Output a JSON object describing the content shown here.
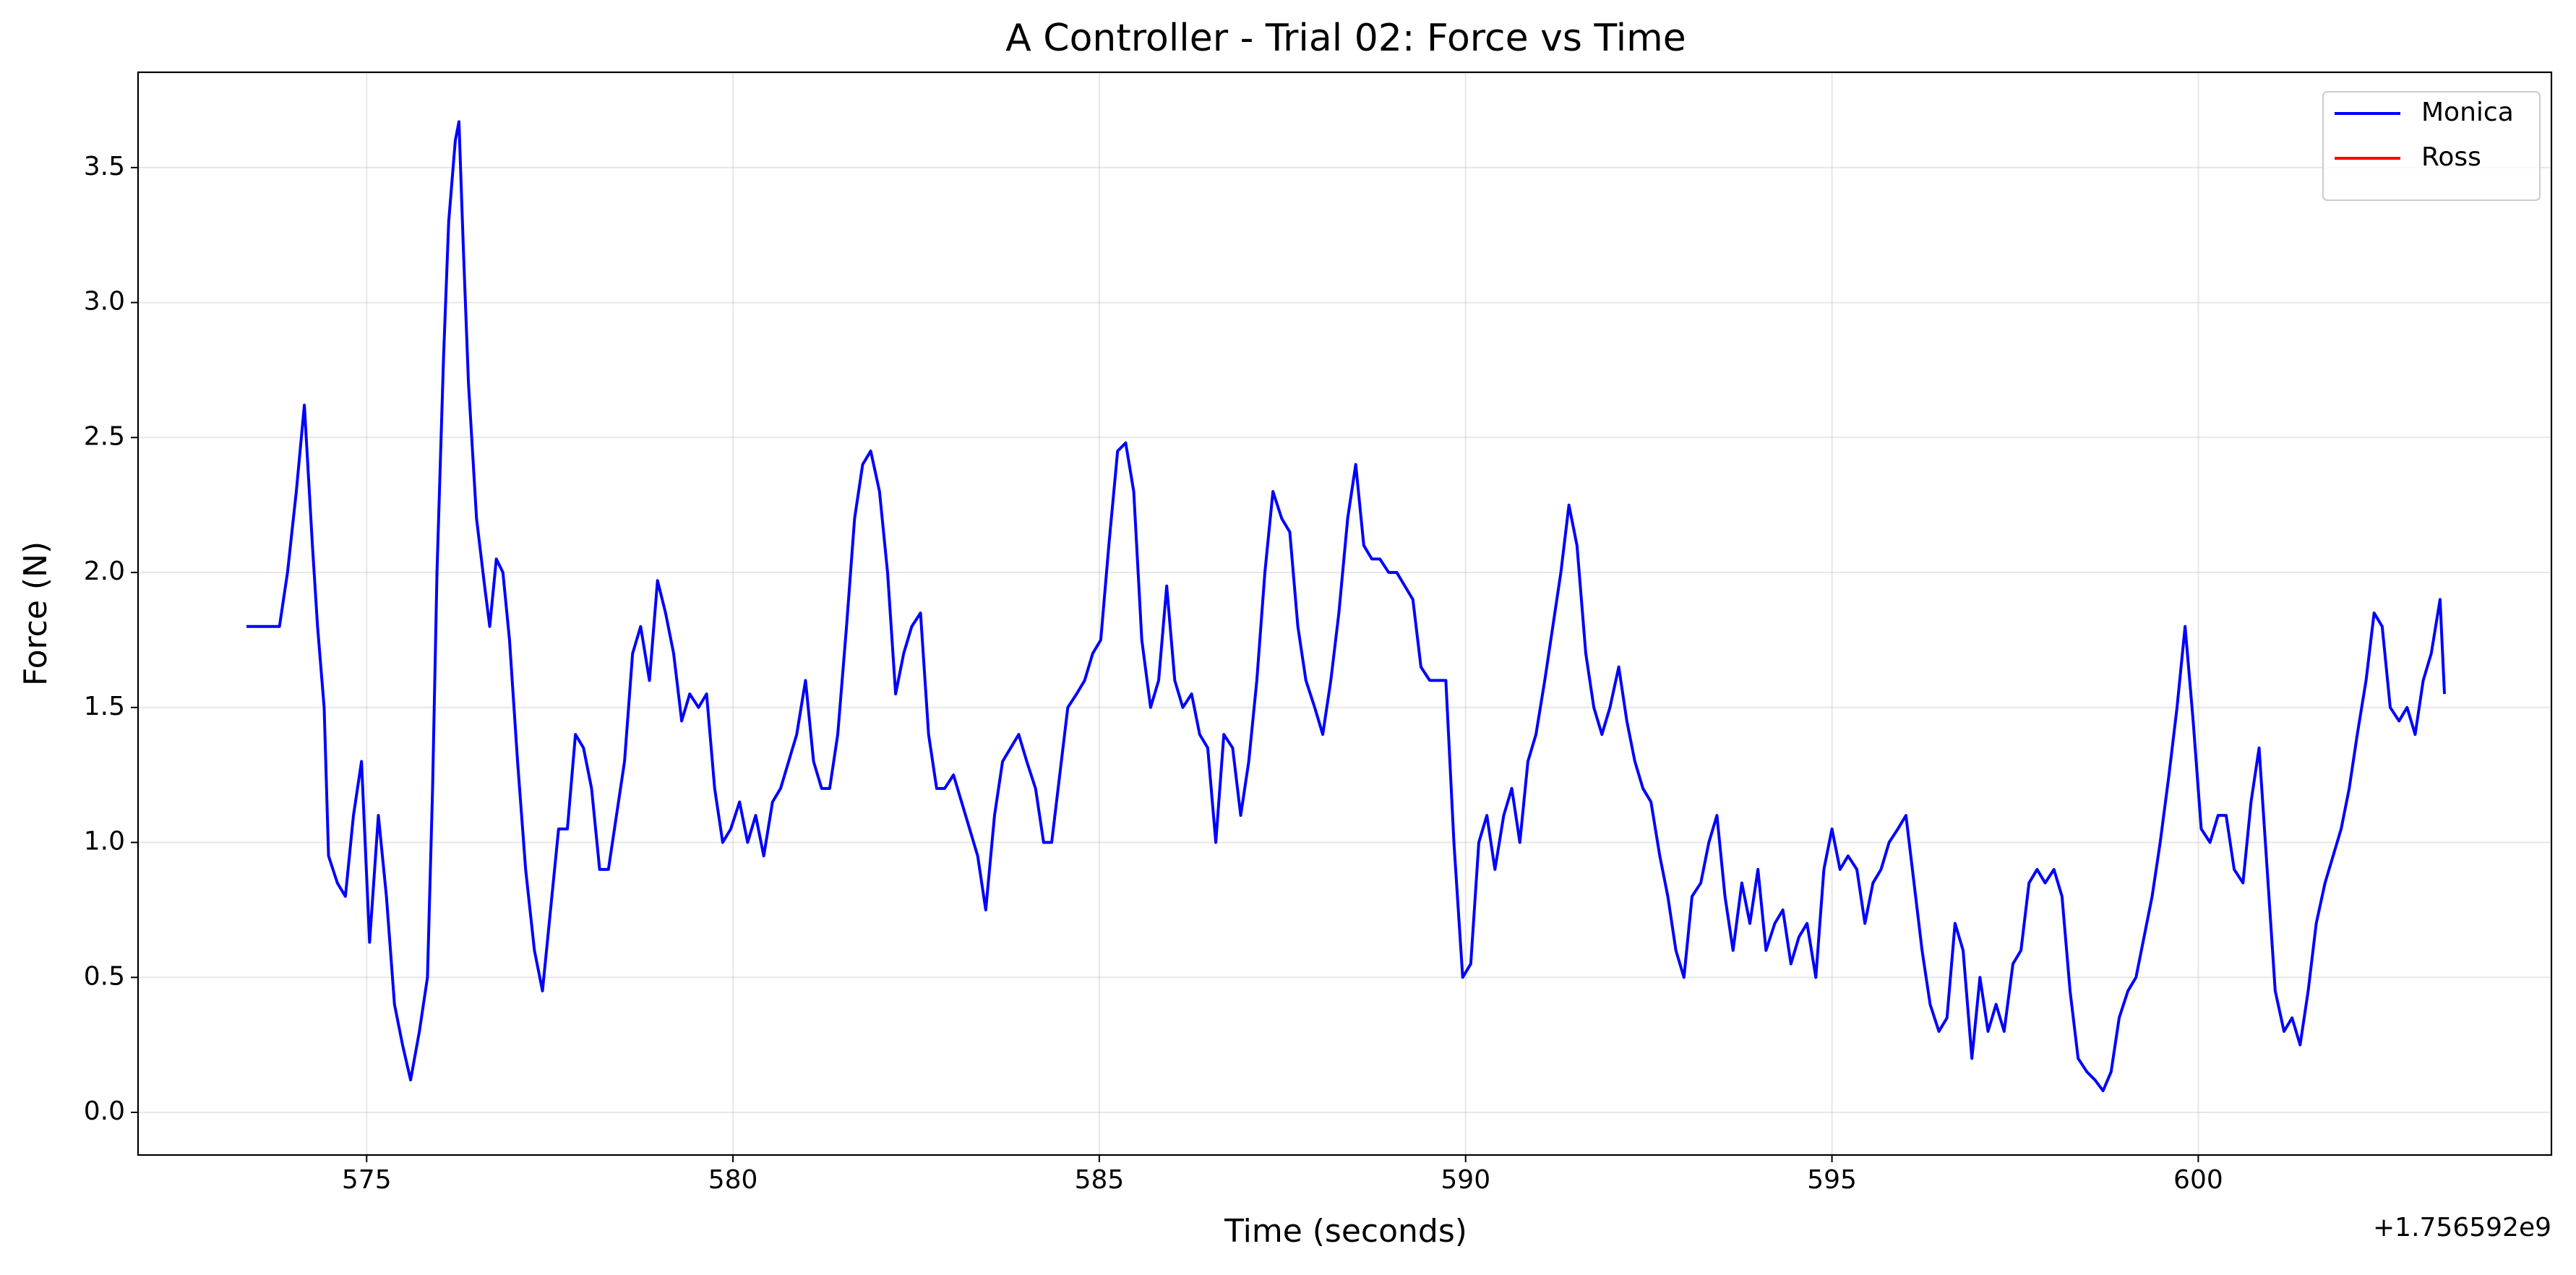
{
  "chart_data": {
    "type": "line",
    "title": "A Controller - Trial 02: Force vs Time",
    "xlabel": "Time (seconds)",
    "ylabel": "Force (N)",
    "x_offset_label": "+1.756592e9",
    "xlim": [
      571.88,
      604.82
    ],
    "ylim": [
      -0.158,
      3.853
    ],
    "xticks": [
      575,
      580,
      585,
      590,
      595,
      600
    ],
    "yticks": [
      {
        "value": 0,
        "label": "0.0"
      },
      0.5,
      {
        "value": 1,
        "label": "1.0"
      },
      1.5,
      {
        "value": 2,
        "label": "2.0"
      },
      2.5,
      {
        "value": 3,
        "label": "3.0"
      },
      3.5
    ],
    "grid": true,
    "legend": "upper right",
    "series": [
      {
        "name": "Monica",
        "color": "#0000ff",
        "x": [
          573.36,
          573.81,
          573.92,
          574.04,
          574.15,
          574.26,
          574.33,
          574.42,
          574.48,
          574.6,
          574.71,
          574.82,
          574.93,
          575.04,
          575.16,
          575.27,
          575.38,
          575.49,
          575.6,
          575.72,
          575.83,
          575.9,
          575.96,
          576.05,
          576.12,
          576.21,
          576.26,
          576.32,
          576.39,
          576.5,
          576.61,
          576.68,
          576.77,
          576.86,
          576.95,
          577.06,
          577.17,
          577.29,
          577.4,
          577.51,
          577.62,
          577.74,
          577.85,
          577.96,
          578.07,
          578.18,
          578.3,
          578.41,
          578.52,
          578.63,
          578.74,
          578.86,
          578.97,
          579.08,
          579.19,
          579.3,
          579.41,
          579.53,
          579.64,
          579.75,
          579.86,
          579.97,
          580.09,
          580.2,
          580.31,
          580.42,
          580.54,
          580.65,
          580.76,
          580.87,
          580.99,
          581.1,
          581.21,
          581.32,
          581.43,
          581.55,
          581.66,
          581.77,
          581.88,
          582.0,
          582.11,
          582.22,
          582.33,
          582.44,
          582.56,
          582.67,
          582.78,
          582.89,
          583.01,
          583.12,
          583.23,
          583.34,
          583.45,
          583.57,
          583.68,
          583.79,
          583.9,
          584.01,
          584.13,
          584.24,
          584.35,
          584.46,
          584.57,
          584.69,
          584.8,
          584.91,
          585.02,
          585.13,
          585.25,
          585.36,
          585.47,
          585.58,
          585.7,
          585.81,
          585.92,
          586.03,
          586.14,
          586.26,
          586.37,
          586.48,
          586.59,
          586.7,
          586.82,
          586.93,
          587.04,
          587.15,
          587.26,
          587.37,
          587.49,
          587.6,
          587.71,
          587.82,
          587.94,
          588.05,
          588.16,
          588.27,
          588.39,
          588.5,
          588.61,
          588.72,
          588.83,
          588.95,
          589.06,
          589.17,
          589.28,
          589.39,
          589.51,
          589.62,
          589.73,
          589.84,
          589.96,
          590.07,
          590.18,
          590.29,
          590.4,
          590.52,
          590.63,
          590.74,
          590.85,
          590.96,
          591.08,
          591.19,
          591.3,
          591.41,
          591.52,
          591.64,
          591.75,
          591.86,
          591.97,
          592.09,
          592.2,
          592.31,
          592.42,
          592.53,
          592.65,
          592.76,
          592.87,
          592.98,
          593.09,
          593.21,
          593.32,
          593.43,
          593.54,
          593.65,
          593.77,
          593.88,
          593.99,
          594.1,
          594.22,
          594.33,
          594.44,
          594.55,
          594.66,
          594.78,
          594.89,
          595.0,
          595.11,
          595.22,
          595.34,
          595.45,
          595.56,
          595.67,
          595.78,
          595.9,
          596.01,
          596.12,
          596.23,
          596.34,
          596.46,
          596.57,
          596.68,
          596.79,
          596.91,
          597.02,
          597.13,
          597.24,
          597.35,
          597.47,
          597.58,
          597.69,
          597.8,
          597.91,
          598.03,
          598.14,
          598.25,
          598.36,
          598.48,
          598.59,
          598.7,
          598.81,
          598.92,
          599.04,
          599.15,
          599.26,
          599.37,
          599.48,
          599.6,
          599.71,
          599.82,
          599.93,
          600.04,
          600.16,
          600.27,
          600.38,
          600.49,
          600.61,
          600.72,
          600.83,
          600.94,
          601.05,
          601.17,
          601.28,
          601.39,
          601.5,
          601.61,
          601.73,
          601.84,
          601.95,
          602.06,
          602.17,
          602.29,
          602.4,
          602.51,
          602.62,
          602.74,
          602.85,
          602.96,
          603.07,
          603.18,
          603.3,
          603.36
        ],
        "values": [
          1.8,
          1.8,
          2.0,
          2.3,
          2.62,
          2.1,
          1.8,
          1.5,
          0.95,
          0.85,
          0.8,
          1.1,
          1.3,
          0.63,
          1.1,
          0.8,
          0.4,
          0.25,
          0.12,
          0.3,
          0.5,
          1.2,
          2.0,
          2.8,
          3.3,
          3.6,
          3.67,
          3.2,
          2.7,
          2.2,
          1.95,
          1.8,
          2.05,
          2.0,
          1.75,
          1.3,
          0.9,
          0.6,
          0.45,
          0.75,
          1.05,
          1.05,
          1.4,
          1.35,
          1.2,
          0.9,
          0.9,
          1.1,
          1.3,
          1.7,
          1.8,
          1.6,
          1.97,
          1.85,
          1.7,
          1.45,
          1.55,
          1.5,
          1.55,
          1.2,
          1.0,
          1.05,
          1.15,
          1.0,
          1.1,
          0.95,
          1.15,
          1.2,
          1.3,
          1.4,
          1.6,
          1.3,
          1.2,
          1.2,
          1.4,
          1.8,
          2.2,
          2.4,
          2.45,
          2.3,
          2.0,
          1.55,
          1.7,
          1.8,
          1.85,
          1.4,
          1.2,
          1.2,
          1.25,
          1.15,
          1.05,
          0.95,
          0.75,
          1.1,
          1.3,
          1.35,
          1.4,
          1.3,
          1.2,
          1.0,
          1.0,
          1.25,
          1.5,
          1.55,
          1.6,
          1.7,
          1.75,
          2.1,
          2.45,
          2.48,
          2.3,
          1.75,
          1.5,
          1.6,
          1.95,
          1.6,
          1.5,
          1.55,
          1.4,
          1.35,
          1.0,
          1.4,
          1.35,
          1.1,
          1.3,
          1.6,
          2.0,
          2.3,
          2.2,
          2.15,
          1.8,
          1.6,
          1.5,
          1.4,
          1.6,
          1.85,
          2.2,
          2.4,
          2.1,
          2.05,
          2.05,
          2.0,
          2.0,
          1.95,
          1.9,
          1.65,
          1.6,
          1.6,
          1.6,
          1.0,
          0.5,
          0.55,
          1.0,
          1.1,
          0.9,
          1.1,
          1.2,
          1.0,
          1.3,
          1.4,
          1.6,
          1.8,
          2.0,
          2.25,
          2.1,
          1.7,
          1.5,
          1.4,
          1.5,
          1.65,
          1.45,
          1.3,
          1.2,
          1.15,
          0.95,
          0.8,
          0.6,
          0.5,
          0.8,
          0.85,
          1.0,
          1.1,
          0.8,
          0.6,
          0.85,
          0.7,
          0.9,
          0.6,
          0.7,
          0.75,
          0.55,
          0.65,
          0.7,
          0.5,
          0.9,
          1.05,
          0.9,
          0.95,
          0.9,
          0.7,
          0.85,
          0.9,
          1.0,
          1.05,
          1.1,
          0.85,
          0.6,
          0.4,
          0.3,
          0.35,
          0.7,
          0.6,
          0.2,
          0.5,
          0.3,
          0.4,
          0.3,
          0.55,
          0.6,
          0.85,
          0.9,
          0.85,
          0.9,
          0.8,
          0.45,
          0.2,
          0.15,
          0.12,
          0.08,
          0.15,
          0.35,
          0.45,
          0.5,
          0.65,
          0.8,
          1.0,
          1.25,
          1.5,
          1.8,
          1.45,
          1.05,
          1.0,
          1.1,
          1.1,
          0.9,
          0.85,
          1.15,
          1.35,
          0.9,
          0.45,
          0.3,
          0.35,
          0.25,
          0.45,
          0.7,
          0.85,
          0.95,
          1.05,
          1.2,
          1.4,
          1.6,
          1.85,
          1.8,
          1.5,
          1.45,
          1.5,
          1.4,
          1.6,
          1.7,
          1.9,
          1.55
        ]
      },
      {
        "name": "Ross",
        "color": "#ff0000",
        "x": [],
        "values": []
      }
    ]
  }
}
